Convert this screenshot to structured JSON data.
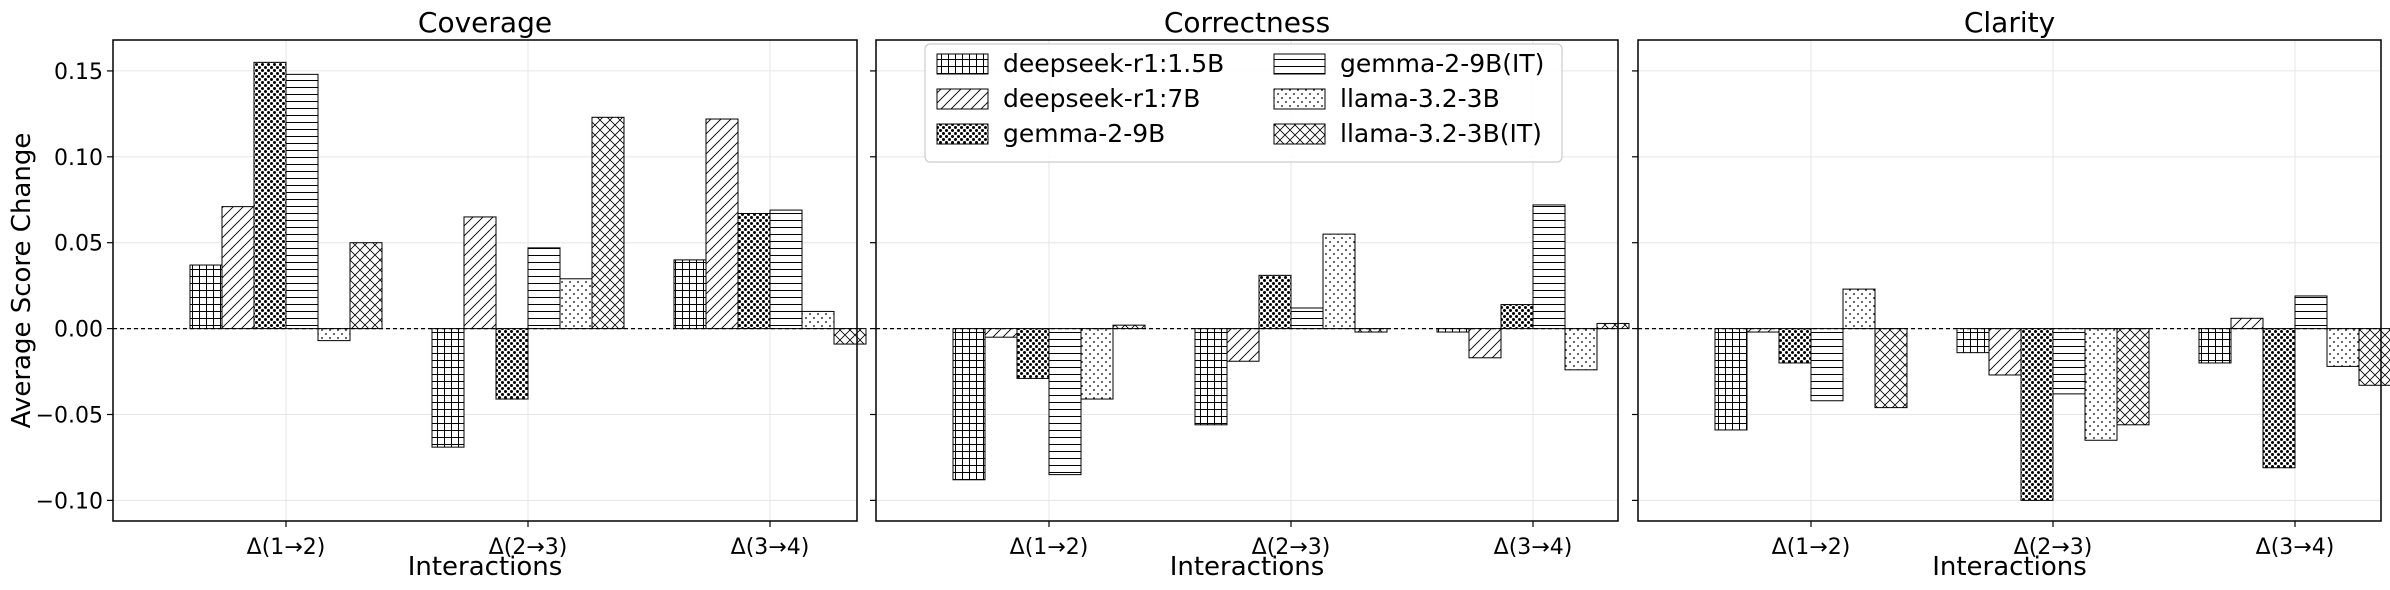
{
  "chart_data": {
    "type": "bar",
    "ylabel": "Average Score Change",
    "ylim": [
      -0.112,
      0.168
    ],
    "yticks": [
      -0.1,
      -0.05,
      0.0,
      0.05,
      0.1,
      0.15
    ],
    "ytick_labels": [
      "−0.10",
      "−0.05",
      "0.00",
      "0.05",
      "0.10",
      "0.15"
    ],
    "grid": true,
    "legend_placement": "top-left of middle panel, two columns",
    "panels": [
      {
        "title": "Coverage",
        "xlabel": "Interactions",
        "categories": [
          "Δ(1→2)",
          "Δ(2→3)",
          "Δ(3→4)"
        ],
        "series": [
          {
            "name": "deepseek-r1:1.5B",
            "pattern": "grid",
            "values": [
              0.037,
              -0.069,
              0.04
            ]
          },
          {
            "name": "deepseek-r1:7B",
            "pattern": "diagonal",
            "values": [
              0.071,
              0.065,
              0.122
            ]
          },
          {
            "name": "gemma-2-9B",
            "pattern": "dense-dots",
            "values": [
              0.155,
              -0.041,
              0.067
            ]
          },
          {
            "name": "gemma-2-9B(IT)",
            "pattern": "horizontal",
            "values": [
              0.148,
              0.047,
              0.069
            ]
          },
          {
            "name": "llama-3.2-3B",
            "pattern": "sparse-dots",
            "values": [
              -0.007,
              0.029,
              0.01
            ]
          },
          {
            "name": "llama-3.2-3B(IT)",
            "pattern": "crosshatch",
            "values": [
              0.05,
              0.123,
              -0.009
            ]
          }
        ]
      },
      {
        "title": "Correctness",
        "xlabel": "Interactions",
        "categories": [
          "Δ(1→2)",
          "Δ(2→3)",
          "Δ(3→4)"
        ],
        "series": [
          {
            "name": "deepseek-r1:1.5B",
            "pattern": "grid",
            "values": [
              -0.088,
              -0.056,
              -0.002
            ]
          },
          {
            "name": "deepseek-r1:7B",
            "pattern": "diagonal",
            "values": [
              -0.005,
              -0.019,
              -0.017
            ]
          },
          {
            "name": "gemma-2-9B",
            "pattern": "dense-dots",
            "values": [
              -0.029,
              0.031,
              0.014
            ]
          },
          {
            "name": "gemma-2-9B(IT)",
            "pattern": "horizontal",
            "values": [
              -0.085,
              0.012,
              0.072
            ]
          },
          {
            "name": "llama-3.2-3B",
            "pattern": "sparse-dots",
            "values": [
              -0.041,
              0.055,
              -0.024
            ]
          },
          {
            "name": "llama-3.2-3B(IT)",
            "pattern": "crosshatch",
            "values": [
              0.002,
              -0.002,
              0.003
            ]
          }
        ]
      },
      {
        "title": "Clarity",
        "xlabel": "Interactions",
        "categories": [
          "Δ(1→2)",
          "Δ(2→3)",
          "Δ(3→4)"
        ],
        "series": [
          {
            "name": "deepseek-r1:1.5B",
            "pattern": "grid",
            "values": [
              -0.059,
              -0.014,
              -0.02
            ]
          },
          {
            "name": "deepseek-r1:7B",
            "pattern": "diagonal",
            "values": [
              -0.002,
              -0.027,
              0.006
            ]
          },
          {
            "name": "gemma-2-9B",
            "pattern": "dense-dots",
            "values": [
              -0.02,
              -0.1,
              -0.081
            ]
          },
          {
            "name": "gemma-2-9B(IT)",
            "pattern": "horizontal",
            "values": [
              -0.042,
              -0.038,
              0.019
            ]
          },
          {
            "name": "llama-3.2-3B",
            "pattern": "sparse-dots",
            "values": [
              0.023,
              -0.065,
              -0.022
            ]
          },
          {
            "name": "llama-3.2-3B(IT)",
            "pattern": "crosshatch",
            "values": [
              -0.046,
              -0.056,
              -0.033
            ]
          }
        ]
      }
    ]
  }
}
